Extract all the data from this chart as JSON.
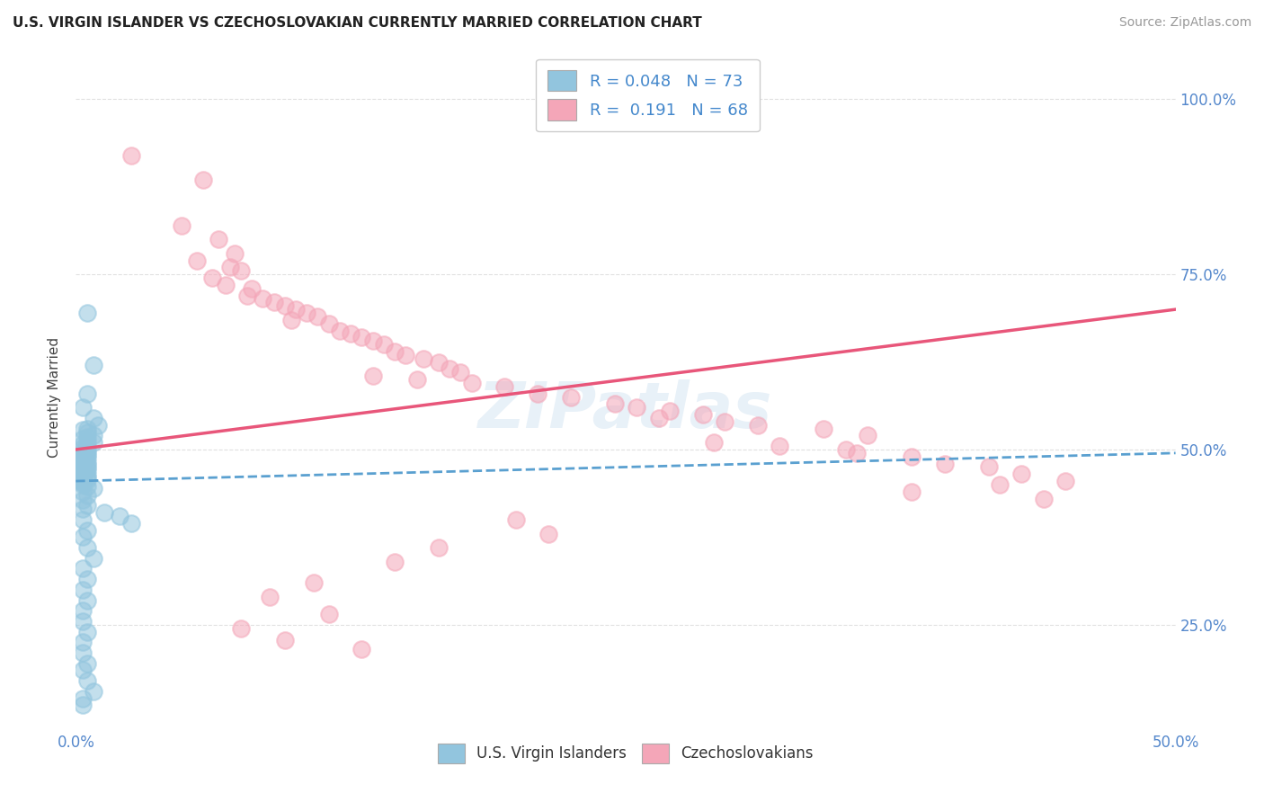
{
  "title": "U.S. VIRGIN ISLANDER VS CZECHOSLOVAKIAN CURRENTLY MARRIED CORRELATION CHART",
  "source": "Source: ZipAtlas.com",
  "ylabel": "Currently Married",
  "xlim": [
    0.0,
    0.5
  ],
  "ylim": [
    0.1,
    1.05
  ],
  "blue_color": "#92c5de",
  "pink_color": "#f4a6b8",
  "blue_line_color": "#5aa0d0",
  "pink_line_color": "#e8567a",
  "watermark": "ZIPatlas",
  "blue_scatter_x": [
    0.005,
    0.008,
    0.005,
    0.003,
    0.008,
    0.01,
    0.005,
    0.003,
    0.005,
    0.008,
    0.005,
    0.003,
    0.005,
    0.008,
    0.003,
    0.005,
    0.003,
    0.005,
    0.003,
    0.005,
    0.003,
    0.005,
    0.003,
    0.005,
    0.003,
    0.003,
    0.005,
    0.003,
    0.005,
    0.003,
    0.005,
    0.003,
    0.005,
    0.003,
    0.003,
    0.005,
    0.003,
    0.005,
    0.003,
    0.005,
    0.003,
    0.003,
    0.003,
    0.005,
    0.008,
    0.003,
    0.005,
    0.003,
    0.005,
    0.003,
    0.013,
    0.02,
    0.003,
    0.025,
    0.005,
    0.003,
    0.005,
    0.008,
    0.003,
    0.005,
    0.003,
    0.005,
    0.003,
    0.003,
    0.005,
    0.003,
    0.003,
    0.005,
    0.003,
    0.005,
    0.008,
    0.003,
    0.003
  ],
  "blue_scatter_y": [
    0.695,
    0.62,
    0.58,
    0.56,
    0.545,
    0.535,
    0.53,
    0.528,
    0.524,
    0.52,
    0.518,
    0.515,
    0.512,
    0.51,
    0.508,
    0.505,
    0.502,
    0.5,
    0.498,
    0.496,
    0.494,
    0.492,
    0.49,
    0.488,
    0.486,
    0.484,
    0.482,
    0.48,
    0.478,
    0.476,
    0.474,
    0.472,
    0.47,
    0.468,
    0.466,
    0.464,
    0.462,
    0.46,
    0.458,
    0.456,
    0.454,
    0.452,
    0.45,
    0.448,
    0.445,
    0.44,
    0.435,
    0.428,
    0.42,
    0.415,
    0.41,
    0.405,
    0.4,
    0.395,
    0.385,
    0.375,
    0.36,
    0.345,
    0.33,
    0.315,
    0.3,
    0.285,
    0.27,
    0.255,
    0.24,
    0.225,
    0.21,
    0.195,
    0.185,
    0.17,
    0.155,
    0.145,
    0.135
  ],
  "pink_scatter_x": [
    0.025,
    0.058,
    0.048,
    0.065,
    0.072,
    0.055,
    0.07,
    0.075,
    0.062,
    0.068,
    0.08,
    0.078,
    0.085,
    0.09,
    0.095,
    0.1,
    0.105,
    0.11,
    0.098,
    0.115,
    0.12,
    0.125,
    0.13,
    0.135,
    0.14,
    0.145,
    0.15,
    0.158,
    0.165,
    0.17,
    0.175,
    0.135,
    0.155,
    0.18,
    0.195,
    0.21,
    0.225,
    0.245,
    0.255,
    0.27,
    0.285,
    0.265,
    0.295,
    0.31,
    0.34,
    0.36,
    0.29,
    0.32,
    0.35,
    0.355,
    0.38,
    0.395,
    0.415,
    0.43,
    0.45,
    0.42,
    0.38,
    0.44,
    0.2,
    0.215,
    0.165,
    0.145,
    0.108,
    0.088,
    0.115,
    0.075,
    0.095,
    0.13
  ],
  "pink_scatter_y": [
    0.92,
    0.885,
    0.82,
    0.8,
    0.78,
    0.77,
    0.76,
    0.755,
    0.745,
    0.735,
    0.73,
    0.72,
    0.715,
    0.71,
    0.705,
    0.7,
    0.695,
    0.69,
    0.685,
    0.68,
    0.67,
    0.665,
    0.66,
    0.655,
    0.65,
    0.64,
    0.635,
    0.63,
    0.625,
    0.615,
    0.61,
    0.605,
    0.6,
    0.595,
    0.59,
    0.58,
    0.575,
    0.565,
    0.56,
    0.555,
    0.55,
    0.545,
    0.54,
    0.535,
    0.53,
    0.52,
    0.51,
    0.505,
    0.5,
    0.495,
    0.49,
    0.48,
    0.475,
    0.465,
    0.455,
    0.45,
    0.44,
    0.43,
    0.4,
    0.38,
    0.36,
    0.34,
    0.31,
    0.29,
    0.265,
    0.245,
    0.228,
    0.215
  ],
  "background_color": "#ffffff",
  "grid_color": "#e0e0e0",
  "blue_line_x0": 0.0,
  "blue_line_x1": 0.5,
  "blue_line_y0": 0.455,
  "blue_line_y1": 0.495,
  "pink_line_x0": 0.0,
  "pink_line_x1": 0.5,
  "pink_line_y0": 0.5,
  "pink_line_y1": 0.7
}
